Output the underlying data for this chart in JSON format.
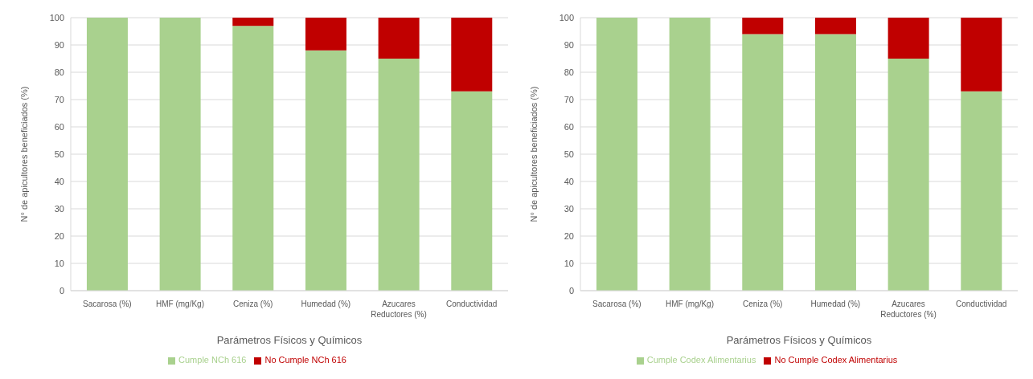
{
  "chart_data": [
    {
      "type": "bar",
      "stacked": true,
      "xlabel": "Parámetros Físicos y Químicos",
      "ylabel": "N° de apicultores beneficiados (%)",
      "categories": [
        "Sacarosa  (%)",
        "HMF (mg/Kg)",
        "Ceniza (%)",
        "Humedad (%)",
        "Azucares Reductores (%)",
        "Conductividad"
      ],
      "series": [
        {
          "name": "Cumple NCh 616",
          "color": "#a9d18e",
          "values": [
            100,
            100,
            97,
            88,
            85,
            73
          ]
        },
        {
          "name": "No Cumple NCh 616",
          "color": "#c00000",
          "values": [
            0,
            0,
            3,
            12,
            15,
            27
          ]
        }
      ],
      "ylim": [
        0,
        100
      ],
      "yticks": [
        0,
        10,
        20,
        30,
        40,
        50,
        60,
        70,
        80,
        90,
        100
      ],
      "grid": "y",
      "legend": "bottom"
    },
    {
      "type": "bar",
      "stacked": true,
      "xlabel": "Parámetros Físicos y Químicos",
      "ylabel": "N° de apicultores beneficiados (%)",
      "categories": [
        "Sacarosa  (%)",
        "HMF (mg/Kg)",
        "Ceniza (%)",
        "Humedad (%)",
        "Azucares Reductores (%)",
        "Conductividad"
      ],
      "series": [
        {
          "name": "Cumple Codex Alimentarius",
          "color": "#a9d18e",
          "values": [
            100,
            100,
            94,
            94,
            85,
            73
          ]
        },
        {
          "name": "No Cumple Codex Alimentarius",
          "color": "#c00000",
          "values": [
            0,
            0,
            6,
            6,
            15,
            27
          ]
        }
      ],
      "ylim": [
        0,
        100
      ],
      "yticks": [
        0,
        10,
        20,
        30,
        40,
        50,
        60,
        70,
        80,
        90,
        100
      ],
      "grid": "y",
      "legend": "bottom"
    }
  ]
}
